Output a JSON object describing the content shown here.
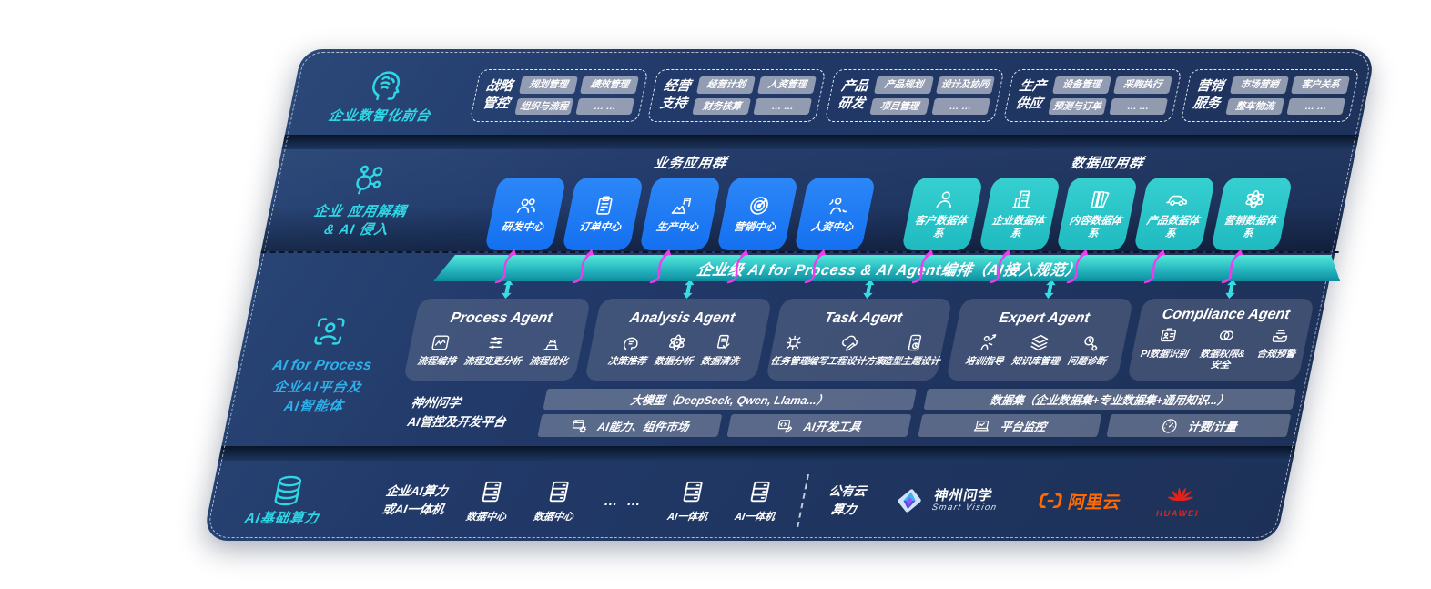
{
  "colors": {
    "accent_teal": "#2fd6e4",
    "app_blue": "#1b79f3",
    "app_teal": "#2cc8ca",
    "arrow_magenta": "#ee3bf0",
    "bar_teal": "#27b7bf",
    "alicloud_orange": "#ff6a00",
    "huawei_red": "#e2231a"
  },
  "front_office": {
    "label": "企业数智化前台",
    "icon": "brain-icon",
    "groups": [
      {
        "title": "战略管控",
        "items": [
          "规划管理",
          "绩效管理",
          "组织与流程",
          "… …"
        ]
      },
      {
        "title": "经营支持",
        "items": [
          "经营计划",
          "人资管理",
          "财务核算",
          "… …"
        ]
      },
      {
        "title": "产品研发",
        "items": [
          "产品规划",
          "设计及协同",
          "项目管理",
          "… …"
        ]
      },
      {
        "title": "生产供应",
        "items": [
          "设备管理",
          "采购执行",
          "预测与订单",
          "… …"
        ]
      },
      {
        "title": "营销服务",
        "items": [
          "市场营销",
          "客户关系",
          "整车物流",
          "… …"
        ]
      }
    ]
  },
  "app_layer": {
    "icon": "molecule-icon",
    "label_line1": "企业 应用解耦",
    "label_line2": "& AI 侵入",
    "business_group": {
      "title": "业务应用群",
      "apps": [
        {
          "label": "研发中心",
          "icon": "team-icon"
        },
        {
          "label": "订单中心",
          "icon": "clipboard-icon"
        },
        {
          "label": "生产中心",
          "icon": "factory-icon"
        },
        {
          "label": "营销中心",
          "icon": "target-icon"
        },
        {
          "label": "人资中心",
          "icon": "hr-icon"
        }
      ]
    },
    "data_group": {
      "title": "数据应用群",
      "apps": [
        {
          "label": "客户数据体系",
          "icon": "person-icon"
        },
        {
          "label": "企业数据体系",
          "icon": "building-icon"
        },
        {
          "label": "内容数据体系",
          "icon": "books-icon"
        },
        {
          "label": "产品数据体系",
          "icon": "car-icon"
        },
        {
          "label": "营销数据体系",
          "icon": "atom-icon"
        }
      ]
    }
  },
  "orchestration_bar": {
    "label": "企业级 AI for Process & AI Agent编排（AI接入规范）"
  },
  "ai_layer": {
    "icon": "scan-person-icon",
    "label_en": "AI for Process",
    "label_line1": "企业AI平台及",
    "label_line2": "AI智能体",
    "agents": [
      {
        "title": "Process Agent",
        "capabilities": [
          {
            "label": "流程编排",
            "icon": "flow-window-icon"
          },
          {
            "label": "流程变更分析",
            "icon": "sliders-icon"
          },
          {
            "label": "流程优化",
            "icon": "machine-icon"
          }
        ]
      },
      {
        "title": "Analysis Agent",
        "capabilities": [
          {
            "label": "决策推荐",
            "icon": "decision-head-icon"
          },
          {
            "label": "数据分析",
            "icon": "atom-icon"
          },
          {
            "label": "数据清洗",
            "icon": "doc-clean-icon"
          }
        ]
      },
      {
        "title": "Task Agent",
        "capabilities": [
          {
            "label": "任务管理",
            "icon": "task-nodes-icon"
          },
          {
            "label": "编写工程设计方案",
            "icon": "cloud-edit-icon"
          },
          {
            "label": "造型主题设计",
            "icon": "design-pad-icon"
          }
        ]
      },
      {
        "title": "Expert Agent",
        "capabilities": [
          {
            "label": "培训指导",
            "icon": "training-icon"
          },
          {
            "label": "知识库管理",
            "icon": "layers-icon"
          },
          {
            "label": "问题诊断",
            "icon": "diagnose-icon"
          }
        ]
      },
      {
        "title": "Compliance Agent",
        "capabilities": [
          {
            "label": "PI数据识别",
            "icon": "id-card-icon"
          },
          {
            "label": "数据权限&安全",
            "icon": "rings-icon",
            "two_line": true
          },
          {
            "label": "合规预警",
            "icon": "inbox-alert-icon"
          }
        ]
      }
    ]
  },
  "platform": {
    "label_line1": "神州问学",
    "label_line2": "AI管控及开发平台",
    "model_bar": "大模型（DeepSeek, Qwen, Llama...）",
    "dataset_bar": "数据集（企业数据集+专业数据集+通用知识...）",
    "model_tools": [
      {
        "label": "AI能力、组件市场",
        "icon": "window-gear-icon"
      },
      {
        "label": "AI开发工具",
        "icon": "window-code-icon"
      }
    ],
    "data_tools": [
      {
        "label": "平台监控",
        "icon": "laptop-chart-icon"
      },
      {
        "label": "计费/计量",
        "icon": "gauge-icon"
      }
    ]
  },
  "infra": {
    "icon": "database-icon",
    "label": "AI基础算力",
    "compute_label_line1": "企业AI算力",
    "compute_label_line2": "或AI一体机",
    "nodes": [
      {
        "icon": "server-icon",
        "label": "数据中心"
      },
      {
        "icon": "server-icon",
        "label": "数据中心"
      },
      {
        "dots": "… …"
      },
      {
        "icon": "server-icon",
        "label": "AI一体机"
      },
      {
        "icon": "server-icon",
        "label": "AI一体机"
      }
    ],
    "public_cloud_line1": "公有云",
    "public_cloud_line2": "算力",
    "vendors": [
      {
        "type": "smartvision",
        "name": "神州问学",
        "sub": "Smart Vision",
        "icon": "smartvision-logo-icon"
      },
      {
        "type": "alicloud",
        "name": "阿里云",
        "icon": "alicloud-logo-icon"
      },
      {
        "type": "huawei",
        "name": "HUAWEI",
        "icon": "huawei-logo-icon"
      }
    ]
  }
}
